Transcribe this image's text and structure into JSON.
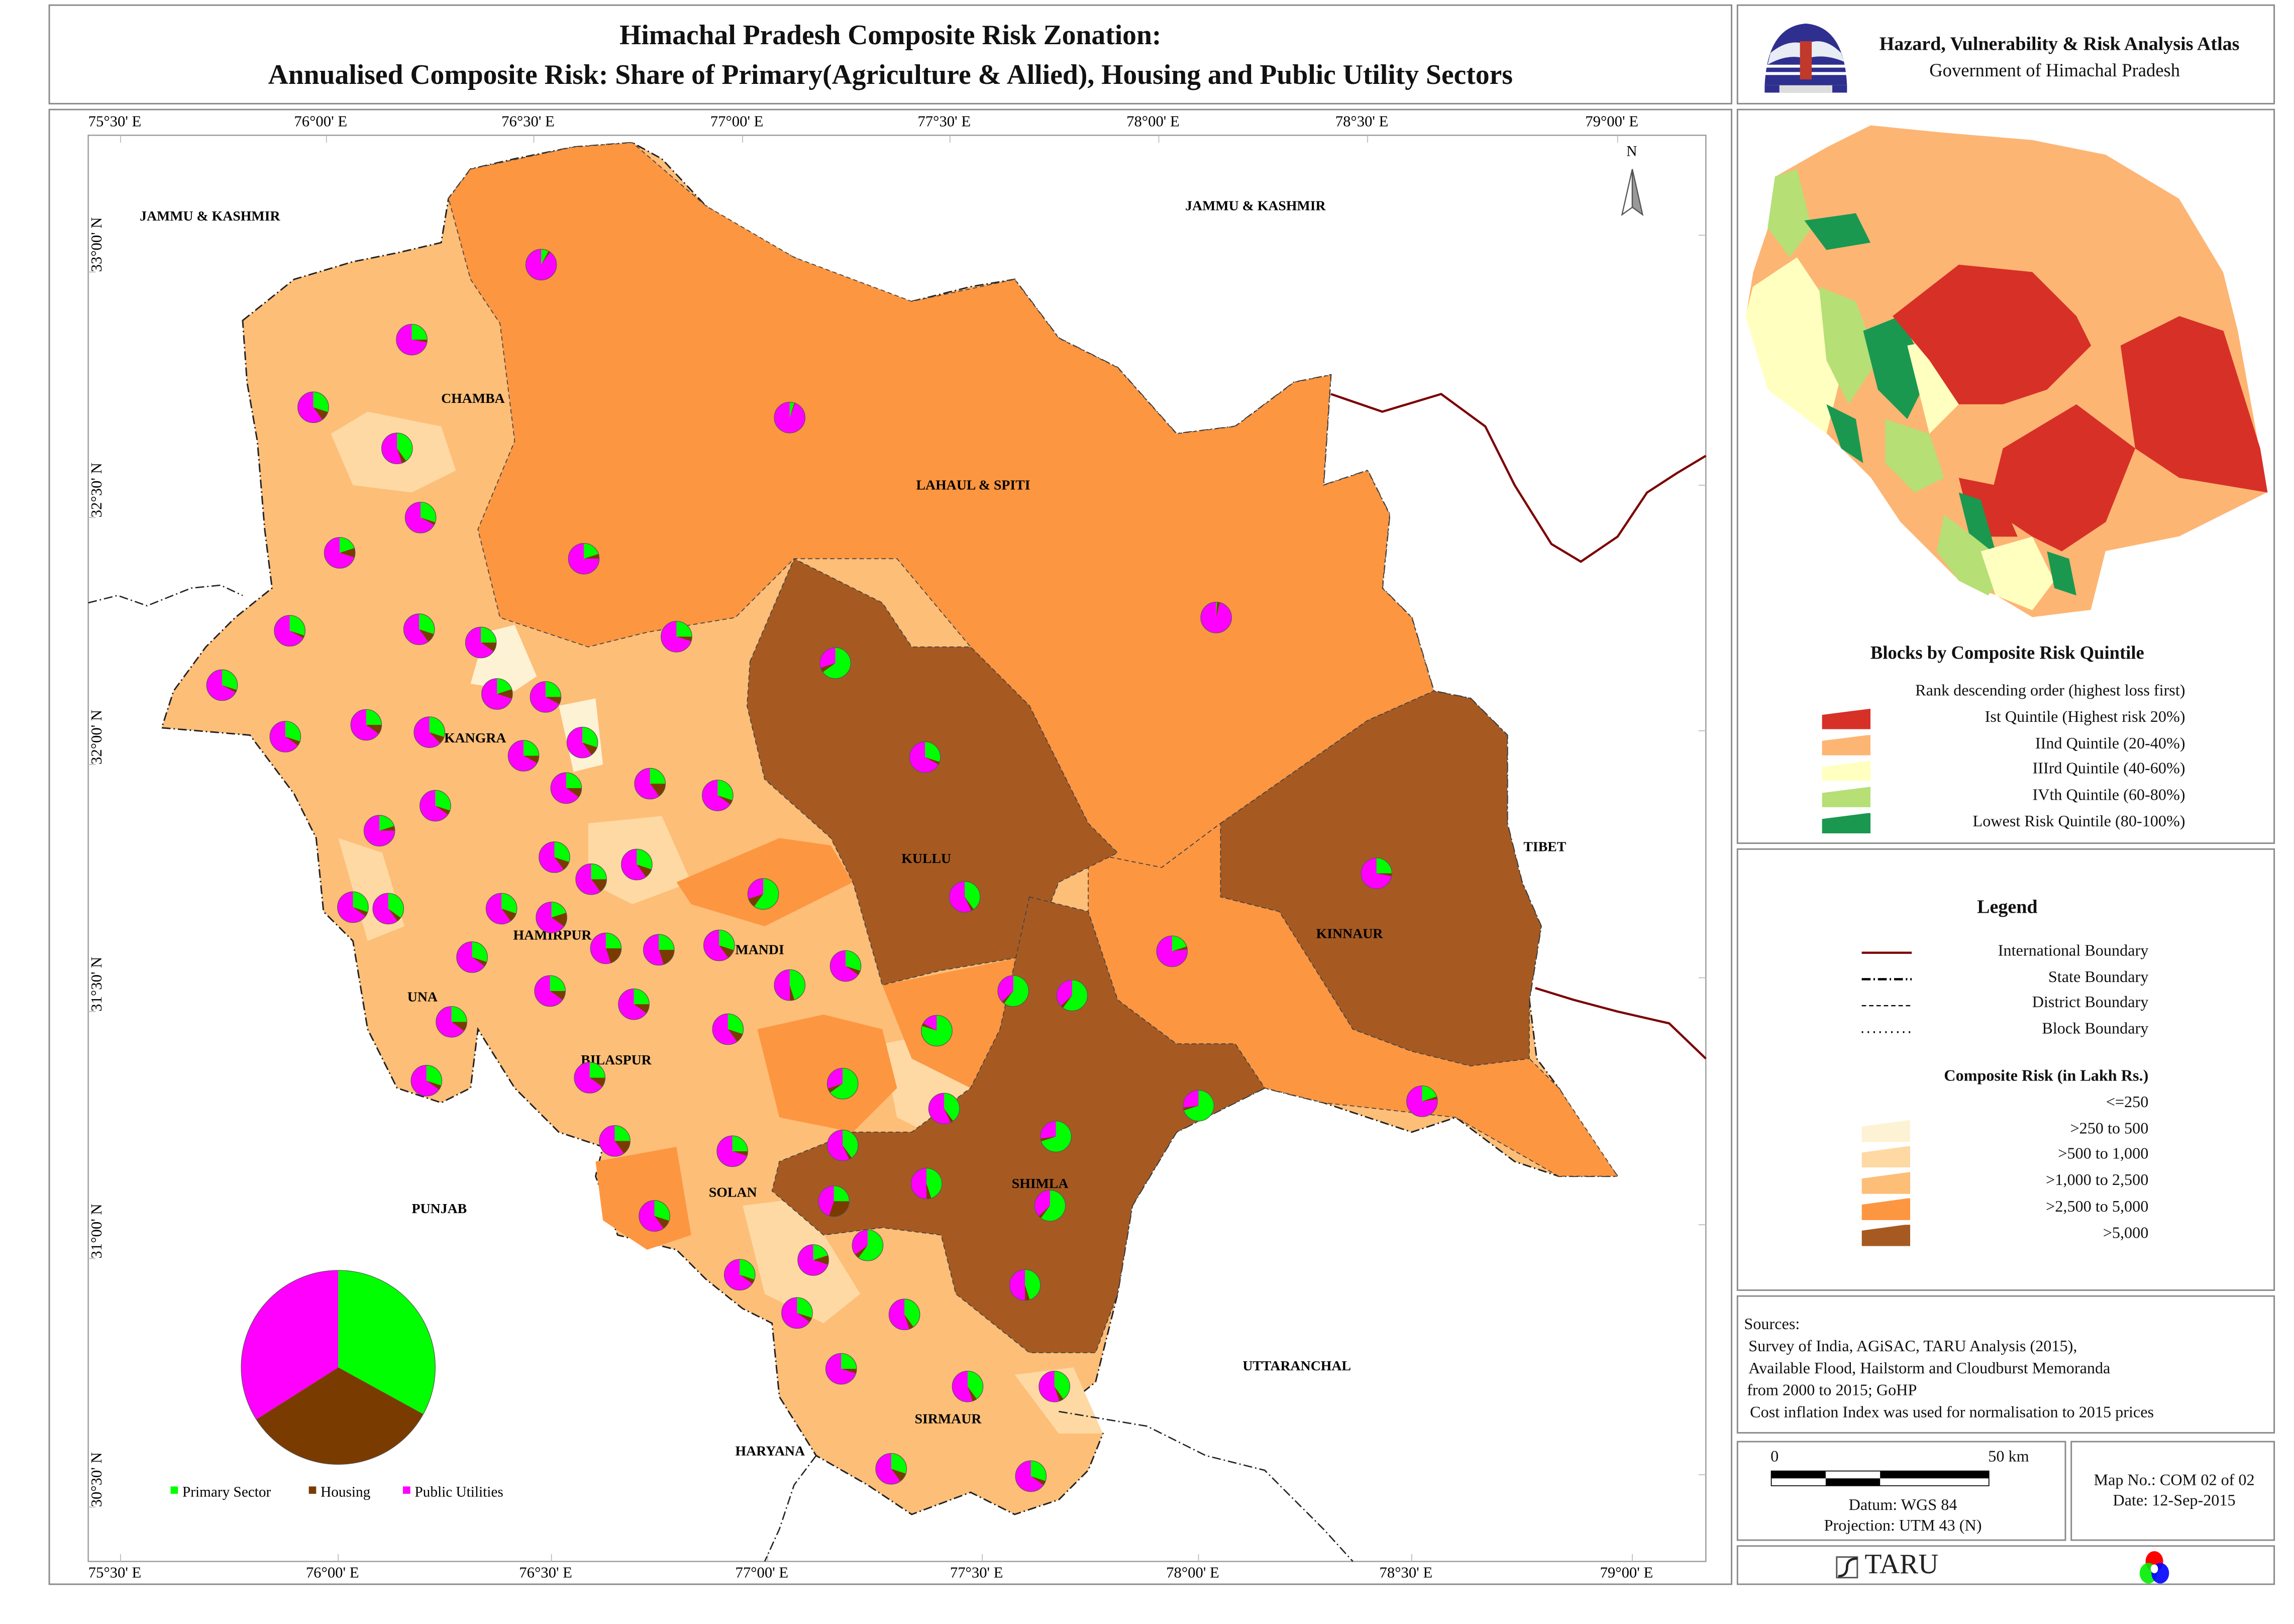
{
  "header": {
    "title_line1": "Himachal Pradesh Composite Risk Zonation:",
    "title_line2": "Annualised Composite Risk: Share of  Primary(Agriculture & Allied), Housing and Public Utility Sectors"
  },
  "atlas": {
    "title": "Hazard, Vulnerability & Risk Analysis Atlas",
    "subtitle": "Government of Himachal Pradesh",
    "logo_text": "हिमाचल प्रदेश सरकार"
  },
  "map": {
    "top_ticks": [
      "75°30' E",
      "76°00' E",
      "76°30' E",
      "77°00' E",
      "77°30' E",
      "78°00' E",
      "78°30' E",
      "79°00' E"
    ],
    "bottom_ticks": [
      "75°30' E",
      "76°00' E",
      "76°30' E",
      "77°00' E",
      "77°30' E",
      "78°00' E",
      "78°30' E",
      "79°00' E"
    ],
    "left_ticks": [
      "33°00' N",
      "32°30' N",
      "32°00' N",
      "31°30' N",
      "31°00' N",
      "30°30' N"
    ],
    "right_ticks": [
      "33°00' N",
      "32°30' N",
      "32°00' N",
      "31°30' N",
      "31°00' N",
      "30°30' N"
    ],
    "north_label": "N",
    "neighbours": {
      "jk_west": "JAMMU & KASHMIR",
      "jk_east": "JAMMU & KASHMIR",
      "tibet": "TIBET",
      "punjab": "PUNJAB",
      "haryana": "HARYANA",
      "uttaranchal": "UTTARANCHAL"
    },
    "districts": {
      "chamba": "CHAMBA",
      "lahaul": "LAHAUL & SPITI",
      "kangra": "KANGRA",
      "kullu": "KULLU",
      "kinnaur": "KINNAUR",
      "mandi": "MANDI",
      "hamirpur": "HAMIRPUR",
      "una": "UNA",
      "bilaspur": "BILASPUR",
      "solan": "SOLAN",
      "shimla": "SHIMLA",
      "sirmaur": "SIRMAUR"
    },
    "pie_legend": {
      "primary": "Primary Sector",
      "housing": "Housing",
      "utilities": "Public Utilities",
      "shares": [
        33,
        33,
        34
      ]
    },
    "sector_colors": {
      "primary": "#00ff00",
      "housing": "#7a3b00",
      "utilities": "#ff00ff"
    },
    "block_pie_shares": [
      [
        8,
        2,
        90
      ],
      [
        25,
        3,
        72
      ],
      [
        30,
        10,
        60
      ],
      [
        40,
        5,
        55
      ],
      [
        30,
        3,
        67
      ],
      [
        20,
        10,
        70
      ],
      [
        20,
        5,
        75
      ],
      [
        5,
        1,
        94
      ],
      [
        1,
        3,
        96
      ],
      [
        30,
        3,
        67
      ],
      [
        30,
        10,
        60
      ],
      [
        25,
        10,
        65
      ],
      [
        25,
        5,
        70
      ],
      [
        65,
        5,
        30
      ],
      [
        30,
        3,
        67
      ],
      [
        20,
        10,
        70
      ],
      [
        25,
        8,
        67
      ],
      [
        30,
        5,
        65
      ],
      [
        25,
        10,
        65
      ],
      [
        30,
        8,
        62
      ],
      [
        25,
        8,
        67
      ],
      [
        30,
        10,
        60
      ],
      [
        30,
        3,
        67
      ],
      [
        25,
        10,
        65
      ],
      [
        25,
        15,
        60
      ],
      [
        30,
        5,
        65
      ],
      [
        30,
        5,
        65
      ],
      [
        20,
        5,
        75
      ],
      [
        30,
        10,
        60
      ],
      [
        25,
        15,
        60
      ],
      [
        30,
        10,
        60
      ],
      [
        60,
        10,
        30
      ],
      [
        40,
        3,
        57
      ],
      [
        25,
        3,
        72
      ],
      [
        30,
        5,
        65
      ],
      [
        35,
        5,
        60
      ],
      [
        30,
        10,
        60
      ],
      [
        20,
        15,
        65
      ],
      [
        30,
        10,
        60
      ],
      [
        25,
        20,
        55
      ],
      [
        25,
        20,
        55
      ],
      [
        45,
        5,
        50
      ],
      [
        30,
        5,
        65
      ],
      [
        30,
        5,
        65
      ],
      [
        20,
        3,
        77
      ],
      [
        60,
        3,
        37
      ],
      [
        60,
        3,
        37
      ],
      [
        25,
        10,
        65
      ],
      [
        25,
        10,
        65
      ],
      [
        25,
        10,
        65
      ],
      [
        30,
        10,
        60
      ],
      [
        80,
        3,
        17
      ],
      [
        30,
        5,
        65
      ],
      [
        25,
        10,
        65
      ],
      [
        65,
        5,
        30
      ],
      [
        40,
        3,
        57
      ],
      [
        70,
        3,
        27
      ],
      [
        20,
        3,
        77
      ],
      [
        70,
        3,
        27
      ],
      [
        25,
        15,
        60
      ],
      [
        25,
        5,
        70
      ],
      [
        40,
        3,
        57
      ],
      [
        45,
        5,
        50
      ],
      [
        30,
        10,
        60
      ],
      [
        25,
        30,
        45
      ],
      [
        60,
        3,
        37
      ],
      [
        20,
        10,
        70
      ],
      [
        60,
        5,
        35
      ],
      [
        30,
        5,
        65
      ],
      [
        30,
        5,
        65
      ],
      [
        45,
        5,
        50
      ],
      [
        40,
        5,
        55
      ],
      [
        25,
        5,
        70
      ],
      [
        40,
        5,
        55
      ],
      [
        40,
        5,
        55
      ],
      [
        30,
        10,
        60
      ],
      [
        30,
        5,
        65
      ]
    ]
  },
  "quintile_panel": {
    "title": "Blocks by Composite Risk  Quintile",
    "subtitle": "Rank descending order (highest loss first)",
    "items": [
      {
        "label": "Ist Quintile (Highest risk 20%)",
        "color": "#d73027"
      },
      {
        "label": "IInd Quintile (20-40%)",
        "color": "#fdb574"
      },
      {
        "label": "IIIrd Quintile (40-60%)",
        "color": "#ffffc0"
      },
      {
        "label": "IVth Quintile (60-80%)",
        "color": "#b6df76"
      },
      {
        "label": "Lowest Risk Quintile (80-100%)",
        "color": "#1a9850"
      }
    ]
  },
  "legend": {
    "title": "Legend",
    "lines": [
      "International Boundary",
      "State Boundary",
      "District Boundary",
      "Block Boundary"
    ],
    "risk_title": "Composite Risk (in Lakh Rs.)",
    "risk_classes": [
      {
        "label": "<=250",
        "color": "#ffffff"
      },
      {
        "label": ">250 to 500",
        "color": "#fef2d4"
      },
      {
        "label": ">500 to 1,000",
        "color": "#fed9a4"
      },
      {
        "label": ">1,000 to 2,500",
        "color": "#fdbe78"
      },
      {
        "label": ">2,500 to 5,000",
        "color": "#fd9641"
      },
      {
        "label": ">5,000",
        "color": "#a65a22"
      }
    ]
  },
  "sources": {
    "heading": "Sources:",
    "lines": [
      "Survey of India, AGiSAC, TARU Analysis (2015),",
      "Available Flood, Hailstorm and Cloudburst  Memoranda",
      "from 2000 to 2015; GoHP",
      "Cost inflation Index was used for normalisation to 2015 prices"
    ]
  },
  "scale": {
    "start": "0",
    "end": "50 km",
    "datum": "Datum: WGS 84",
    "projection": "Projection: UTM 43 (N)"
  },
  "mapinfo": {
    "map_no": "Map No.: COM 02 of 02",
    "date": "Date: 12-Sep-2015"
  },
  "footer": {
    "taru": "TARU"
  }
}
